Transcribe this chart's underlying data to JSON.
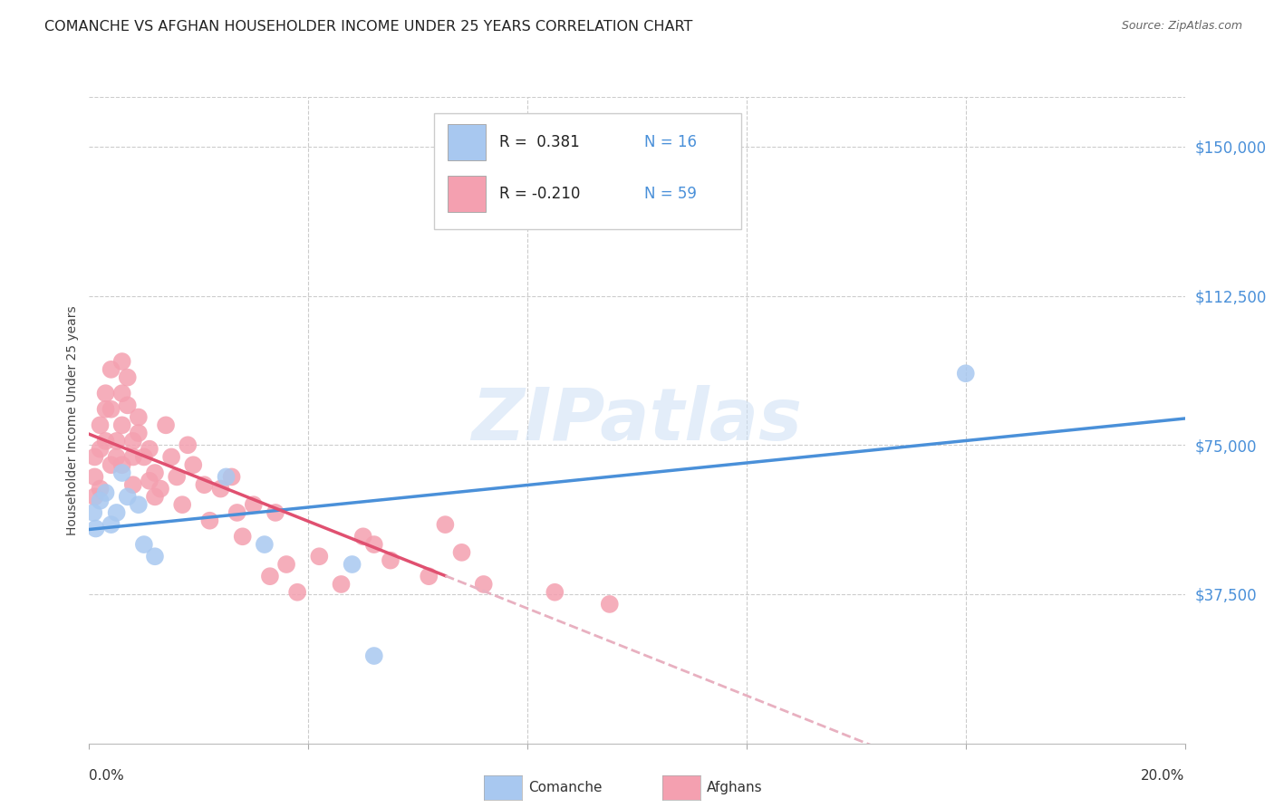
{
  "title": "COMANCHE VS AFGHAN HOUSEHOLDER INCOME UNDER 25 YEARS CORRELATION CHART",
  "source": "Source: ZipAtlas.com",
  "ylabel": "Householder Income Under 25 years",
  "watermark": "ZIPatlas",
  "ytick_labels": [
    "$37,500",
    "$75,000",
    "$112,500",
    "$150,000"
  ],
  "ytick_values": [
    37500,
    75000,
    112500,
    150000
  ],
  "ymin": 0,
  "ymax": 162500,
  "xmin": 0.0,
  "xmax": 0.2,
  "legend_r_comanche": "R =  0.381",
  "legend_n_comanche": "N = 16",
  "legend_r_afghan": "R = -0.210",
  "legend_n_afghan": "N = 59",
  "comanche_color": "#a8c8f0",
  "afghan_color": "#f4a0b0",
  "trendline_comanche_color": "#4a90d9",
  "trendline_afghan_color": "#e05070",
  "trendline_afghan_extend_color": "#e8b0c0",
  "comanche_x": [
    0.0008,
    0.0012,
    0.002,
    0.003,
    0.004,
    0.005,
    0.006,
    0.007,
    0.009,
    0.01,
    0.012,
    0.025,
    0.032,
    0.048,
    0.052,
    0.16
  ],
  "comanche_y": [
    58000,
    54000,
    61000,
    63000,
    55000,
    58000,
    68000,
    62000,
    60000,
    50000,
    47000,
    67000,
    50000,
    45000,
    22000,
    93000
  ],
  "afghan_x": [
    0.001,
    0.001,
    0.001,
    0.002,
    0.002,
    0.002,
    0.003,
    0.003,
    0.003,
    0.004,
    0.004,
    0.004,
    0.005,
    0.005,
    0.006,
    0.006,
    0.006,
    0.006,
    0.007,
    0.007,
    0.008,
    0.008,
    0.008,
    0.009,
    0.009,
    0.01,
    0.011,
    0.011,
    0.012,
    0.012,
    0.013,
    0.014,
    0.015,
    0.016,
    0.017,
    0.018,
    0.019,
    0.021,
    0.022,
    0.024,
    0.026,
    0.027,
    0.028,
    0.03,
    0.033,
    0.034,
    0.036,
    0.038,
    0.042,
    0.046,
    0.05,
    0.052,
    0.055,
    0.062,
    0.065,
    0.068,
    0.072,
    0.085,
    0.095
  ],
  "afghan_y": [
    62000,
    67000,
    72000,
    80000,
    74000,
    64000,
    84000,
    88000,
    76000,
    94000,
    84000,
    70000,
    76000,
    72000,
    96000,
    88000,
    80000,
    70000,
    92000,
    85000,
    76000,
    72000,
    65000,
    82000,
    78000,
    72000,
    66000,
    74000,
    62000,
    68000,
    64000,
    80000,
    72000,
    67000,
    60000,
    75000,
    70000,
    65000,
    56000,
    64000,
    67000,
    58000,
    52000,
    60000,
    42000,
    58000,
    45000,
    38000,
    47000,
    40000,
    52000,
    50000,
    46000,
    42000,
    55000,
    48000,
    40000,
    38000,
    35000
  ],
  "background_color": "#ffffff",
  "grid_color": "#cccccc"
}
